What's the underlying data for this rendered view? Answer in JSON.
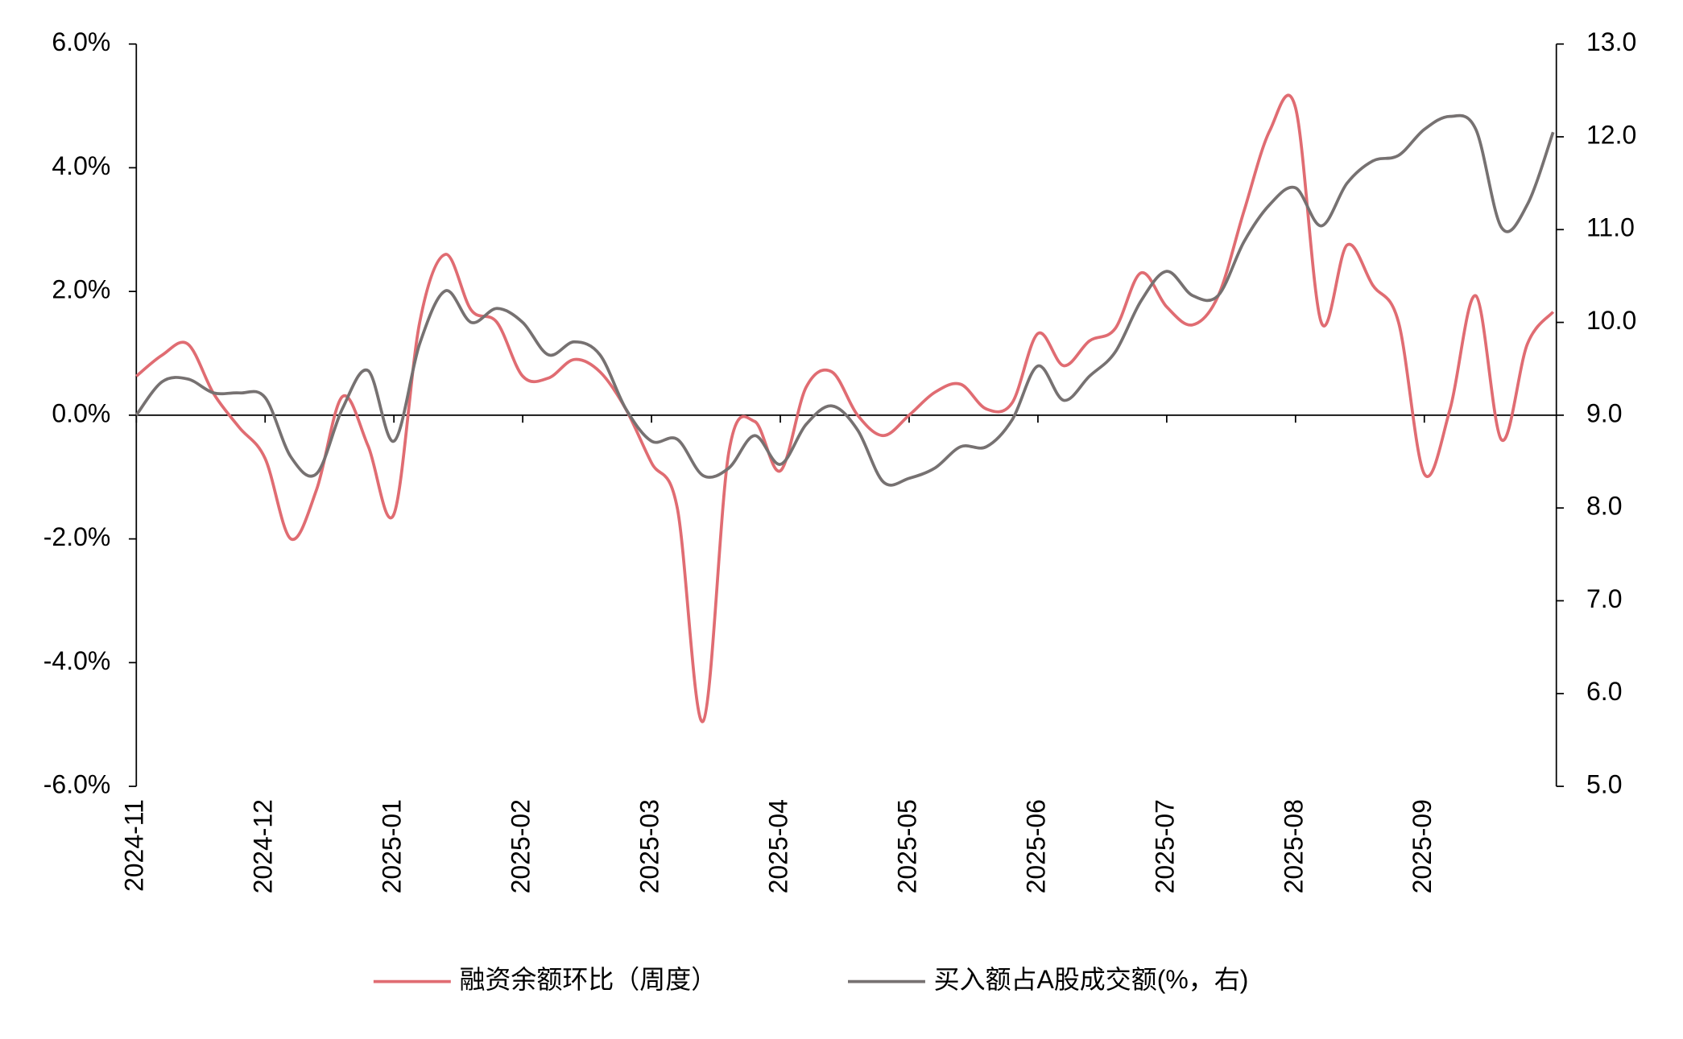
{
  "chart_data": {
    "type": "line",
    "categories": [
      "2024-11",
      null,
      null,
      null,
      null,
      "2024-12",
      null,
      null,
      null,
      null,
      "2025-01",
      null,
      null,
      null,
      null,
      "2025-02",
      null,
      null,
      null,
      null,
      "2025-03",
      null,
      null,
      null,
      null,
      "2025-04",
      null,
      null,
      null,
      null,
      "2025-05",
      null,
      null,
      null,
      null,
      "2025-06",
      null,
      null,
      null,
      null,
      "2025-07",
      null,
      null,
      null,
      null,
      "2025-08",
      null,
      null,
      null,
      null,
      "2025-09",
      null,
      null,
      null,
      null,
      null
    ],
    "series": [
      {
        "name": "融资余额环比（周度）",
        "color": "#e06c72",
        "values": [
          0.63,
          0.97,
          1.15,
          0.35,
          -0.2,
          -0.7,
          -2.0,
          -1.2,
          0.3,
          -0.5,
          -1.6,
          1.5,
          2.6,
          1.7,
          1.5,
          0.63,
          0.6,
          0.9,
          0.7,
          0.1,
          -0.77,
          -1.5,
          -4.95,
          -0.6,
          -0.1,
          -0.9,
          0.45,
          0.7,
          0,
          -0.33,
          0,
          0.37,
          0.5,
          0.1,
          0.2,
          1.32,
          0.8,
          1.2,
          1.4,
          2.3,
          1.75,
          1.46,
          1.93,
          3.3,
          4.6,
          4.97,
          1.5,
          2.75,
          2.1,
          1.5,
          -0.95,
          0.1,
          1.93,
          -0.4,
          1.15,
          1.67
        ]
      },
      {
        "name": "买入额占A股成交额(%，右)",
        "color": "#767171",
        "axis": "y2",
        "values": [
          9.0,
          9.36,
          9.39,
          9.24,
          9.24,
          9.19,
          8.55,
          8.37,
          9.07,
          9.48,
          8.72,
          9.77,
          10.34,
          10.0,
          10.15,
          10.0,
          9.65,
          9.79,
          9.65,
          9.07,
          8.72,
          8.74,
          8.35,
          8.43,
          8.78,
          8.47,
          8.9,
          9.1,
          8.84,
          8.28,
          8.32,
          8.43,
          8.66,
          8.66,
          8.95,
          9.53,
          9.16,
          9.42,
          9.68,
          10.23,
          10.55,
          10.29,
          10.29,
          10.87,
          11.27,
          11.45,
          11.04,
          11.5,
          11.74,
          11.8,
          12.08,
          12.22,
          12.08,
          11.02,
          11.27,
          12.05
        ]
      }
    ],
    "ylim": [
      -6,
      6
    ],
    "yticks": [
      {
        "value": 6,
        "label": "6.0%"
      },
      {
        "value": 4,
        "label": "4.0%"
      },
      {
        "value": 2,
        "label": "2.0%"
      },
      {
        "value": 0,
        "label": "0.0%"
      },
      {
        "value": -2,
        "label": "-2.0%"
      },
      {
        "value": -4,
        "label": "-4.0%"
      },
      {
        "value": -6,
        "label": "-6.0%"
      }
    ],
    "y2lim": [
      5,
      13
    ],
    "y2ticks": [
      {
        "value": 13,
        "label": "13.0"
      },
      {
        "value": 12,
        "label": "12.0"
      },
      {
        "value": 11,
        "label": "11.0"
      },
      {
        "value": 10,
        "label": "10.0"
      },
      {
        "value": 9,
        "label": "9.0"
      },
      {
        "value": 8,
        "label": "8.0"
      },
      {
        "value": 7,
        "label": "7.0"
      },
      {
        "value": 6,
        "label": "6.0"
      },
      {
        "value": 5,
        "label": "5.0"
      }
    ],
    "legend": "bottom"
  }
}
